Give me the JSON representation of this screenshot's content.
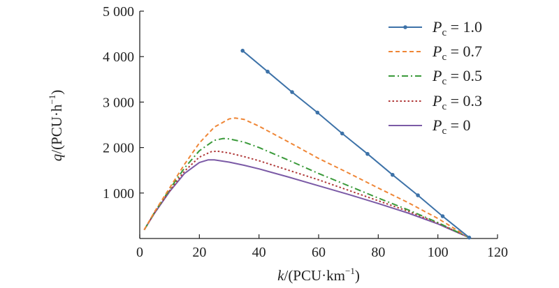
{
  "chart_data": {
    "type": "line",
    "xlabel": {
      "italic": "k",
      "rest": "/(PCU·km",
      "sup": "−1",
      "close": ")"
    },
    "ylabel": {
      "italic": "q",
      "rest": "/(PCU·h",
      "sup": "−1",
      "close": ")"
    },
    "xlim": [
      0,
      120
    ],
    "ylim": [
      0,
      5000
    ],
    "x_ticks": [
      0,
      20,
      40,
      60,
      80,
      100,
      120
    ],
    "x_tick_labels": [
      "0",
      "20",
      "40",
      "60",
      "80",
      "100",
      "120"
    ],
    "y_ticks": [
      1000,
      2000,
      3000,
      4000,
      5000
    ],
    "y_tick_labels": [
      "1 000",
      "2 000",
      "3 000",
      "4 000",
      "5 000"
    ],
    "grid": false,
    "legend_position": "top-right",
    "series": [
      {
        "name": "1.0",
        "legend_italic": "P",
        "legend_sub": "c",
        "color": "#3d72a8",
        "dash": "solid",
        "markers": true,
        "x": [
          34.5,
          42.9,
          51.1,
          59.6,
          67.9,
          76.4,
          84.8,
          93.3,
          101.6,
          110.5
        ],
        "y": [
          4130,
          3670,
          3220,
          2770,
          2310,
          1860,
          1400,
          950,
          490,
          20
        ]
      },
      {
        "name": "0.7",
        "legend_italic": "P",
        "legend_sub": "c",
        "color": "#ef8636",
        "dash": "dashed",
        "markers": false,
        "x": [
          1.5,
          5,
          10,
          15,
          20,
          25,
          30,
          32,
          35,
          40,
          50,
          60,
          70,
          80,
          90,
          100,
          110.5
        ],
        "y": [
          190,
          590,
          1110,
          1630,
          2100,
          2450,
          2630,
          2650,
          2620,
          2470,
          2120,
          1760,
          1440,
          1110,
          790,
          440,
          20
        ]
      },
      {
        "name": "0.5",
        "legend_italic": "P",
        "legend_sub": "c",
        "color": "#3a9a3a",
        "dash": "dashdot",
        "markers": false,
        "x": [
          1.5,
          5,
          10,
          15,
          20,
          25,
          28,
          30,
          35,
          40,
          50,
          60,
          70,
          80,
          90,
          100,
          110.5
        ],
        "y": [
          190,
          580,
          1080,
          1550,
          1930,
          2160,
          2200,
          2190,
          2120,
          2000,
          1720,
          1430,
          1160,
          890,
          630,
          350,
          20
        ]
      },
      {
        "name": "0.3",
        "legend_italic": "P",
        "legend_sub": "c",
        "color": "#b03a3a",
        "dash": "dotted",
        "markers": false,
        "x": [
          1.5,
          5,
          10,
          15,
          20,
          24,
          26,
          30,
          35,
          40,
          50,
          60,
          70,
          80,
          90,
          100,
          110.5
        ],
        "y": [
          190,
          570,
          1050,
          1480,
          1790,
          1910,
          1920,
          1880,
          1800,
          1710,
          1500,
          1290,
          1060,
          830,
          600,
          340,
          20
        ]
      },
      {
        "name": "0",
        "legend_italic": "P",
        "legend_sub": "c",
        "color": "#7b5aa6",
        "dash": "solid",
        "markers": false,
        "x": [
          1.5,
          5,
          10,
          15,
          20,
          23,
          25,
          30,
          35,
          40,
          50,
          60,
          70,
          80,
          90,
          100,
          110.5
        ],
        "y": [
          190,
          560,
          1030,
          1430,
          1670,
          1730,
          1730,
          1680,
          1610,
          1530,
          1350,
          1160,
          970,
          770,
          560,
          320,
          20
        ]
      }
    ]
  }
}
